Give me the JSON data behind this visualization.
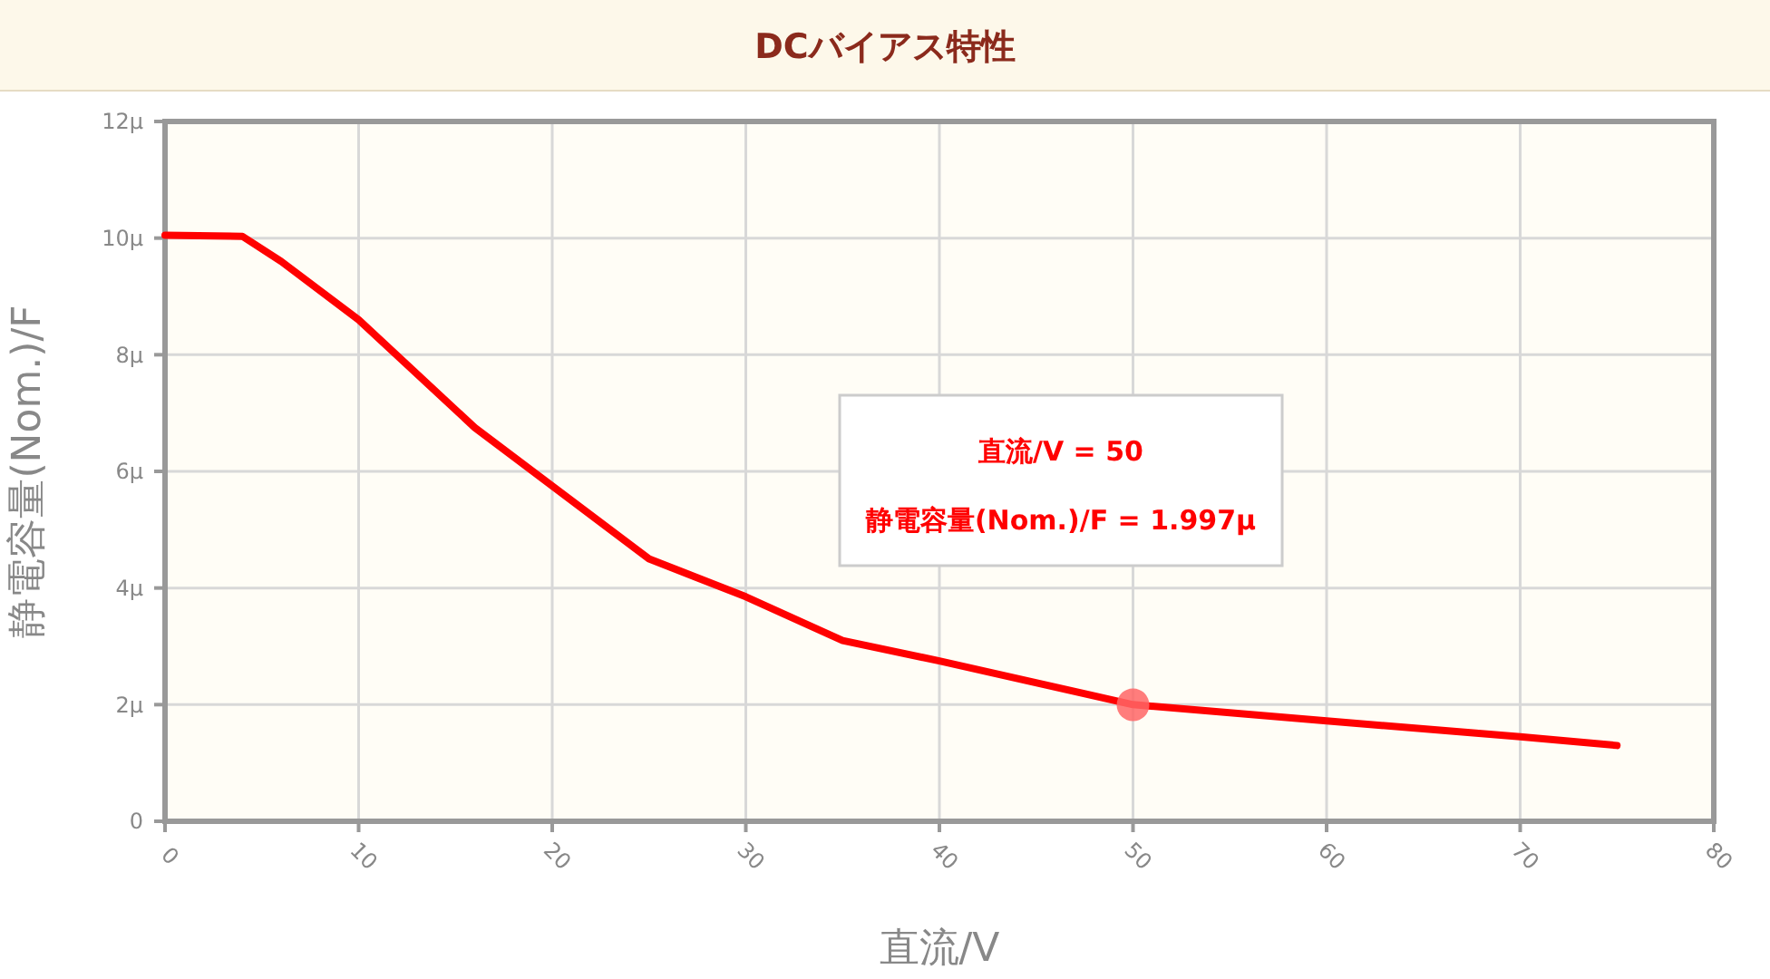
{
  "chart_data": {
    "type": "line",
    "title": "DCバイアス特性",
    "xlabel": "直流/V",
    "ylabel": "静電容量(Nom.)/F",
    "x": [
      0,
      4,
      6,
      10,
      16,
      25,
      30,
      35,
      40,
      50,
      60,
      70,
      75
    ],
    "series": [
      {
        "color": "#ff0000",
        "marker": "none",
        "values": [
          10.05,
          10.03,
          9.6,
          8.6,
          6.75,
          4.5,
          3.85,
          3.1,
          2.75,
          2.0,
          1.72,
          1.45,
          1.3
        ]
      },
      {
        "type": "scatter",
        "marker": "circle",
        "color": "#ff6666",
        "x": [
          50
        ],
        "values": [
          1.997
        ]
      }
    ],
    "xlim": [
      0,
      80
    ],
    "xticks": [
      0,
      10,
      20,
      30,
      40,
      50,
      60,
      70,
      80
    ],
    "ylim": [
      0,
      12
    ],
    "yticks": [
      0,
      {
        "value": 2,
        "label": "2μ"
      },
      {
        "value": 4,
        "label": "4μ"
      },
      {
        "value": 6,
        "label": "6μ"
      },
      {
        "value": 8,
        "label": "8μ"
      },
      {
        "value": 10,
        "label": "10μ"
      },
      {
        "value": 12,
        "label": "12μ"
      }
    ],
    "grid": true,
    "line_style": "solid",
    "annotations": [
      "直流/V = 50",
      "静電容量(Nom.)/F = 1.997μ"
    ]
  }
}
